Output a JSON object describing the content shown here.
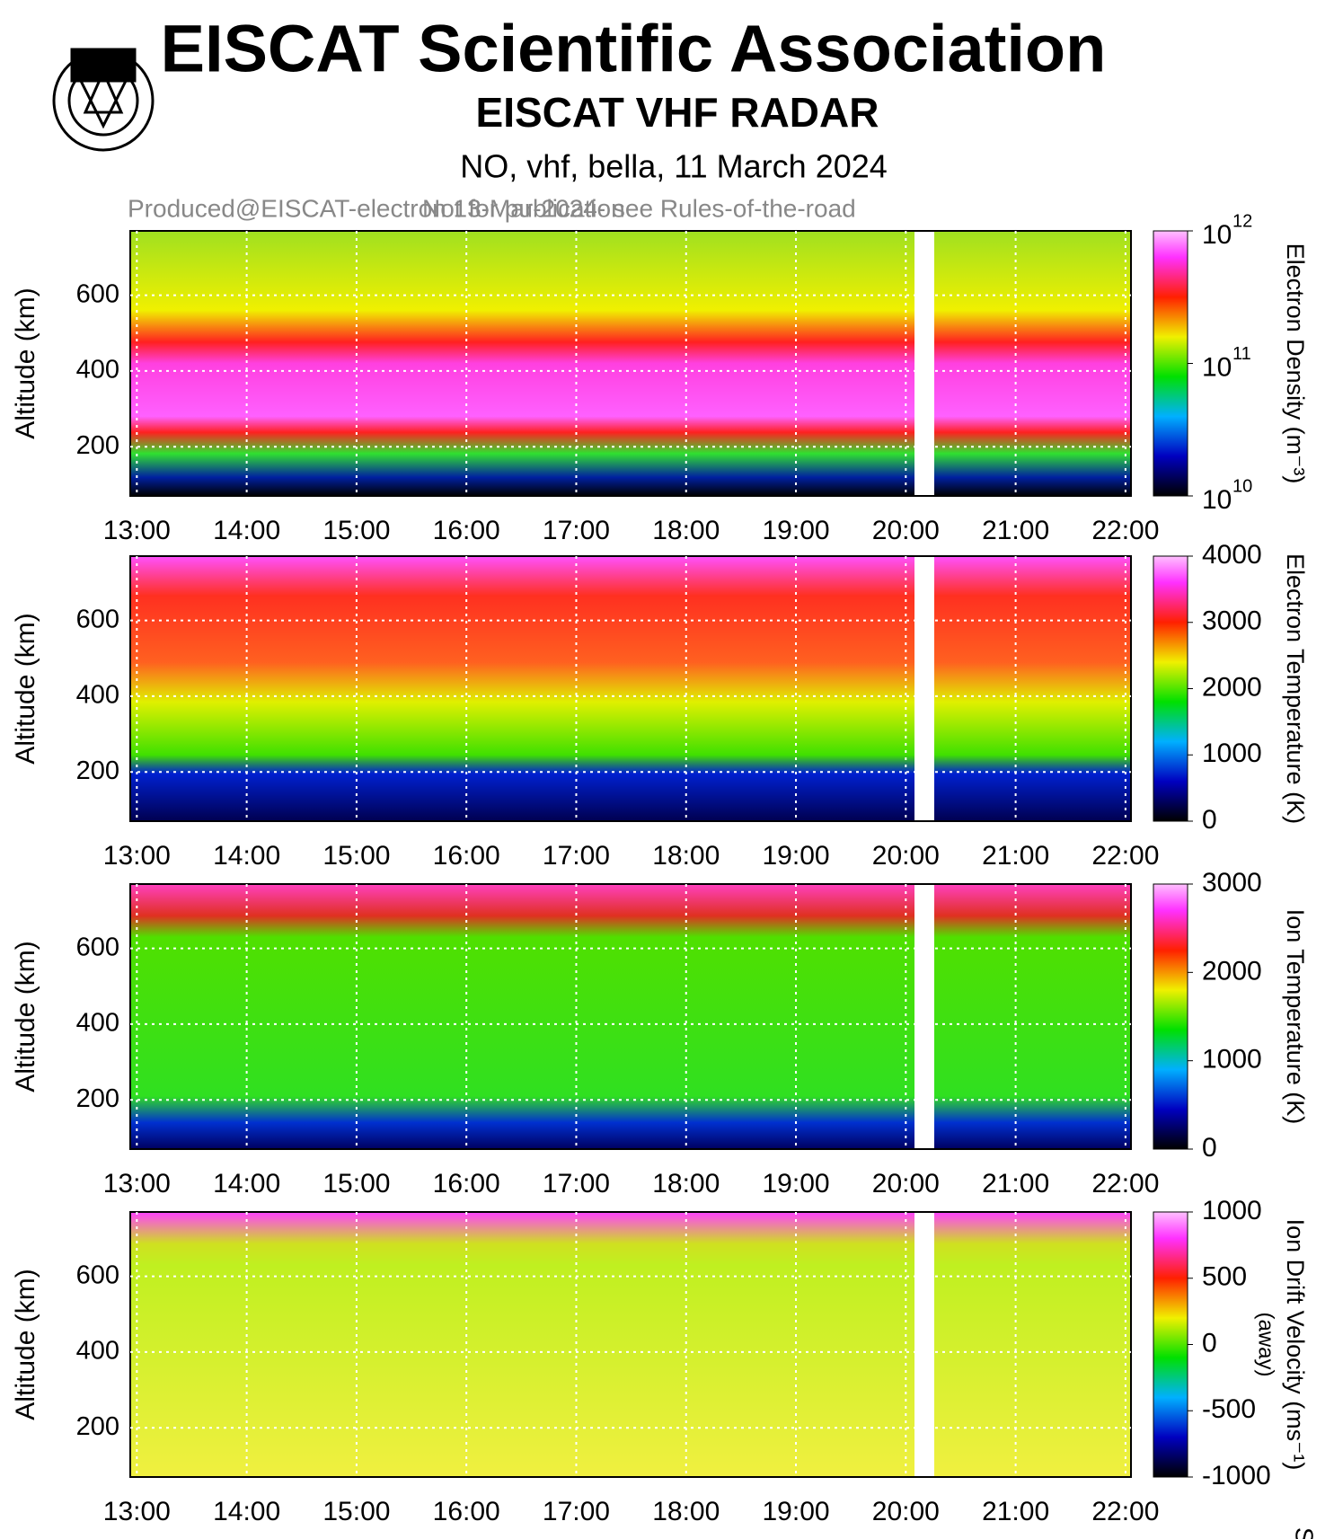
{
  "header": {
    "title": "EISCAT Scientific Association",
    "subtitle": "EISCAT VHF RADAR",
    "run": "NO, vhf, bella, 11 March 2024",
    "note": "Produced@EISCAT-electron 13-Mar-2024- see Rules-of-the-road",
    "overlay": "Not for publication",
    "cut_label": "Syst"
  },
  "chart_data": [
    {
      "type": "heatmap",
      "y_label": "Altitude (km)",
      "ylim": [
        70,
        770
      ],
      "yticks": [
        200,
        400,
        600
      ],
      "xlim": [
        12.94,
        22.05
      ],
      "xticks": [
        {
          "value": 13,
          "label": "13:00"
        },
        {
          "value": 14,
          "label": "14:00"
        },
        {
          "value": 15,
          "label": "15:00"
        },
        {
          "value": 16,
          "label": "16:00"
        },
        {
          "value": 17,
          "label": "17:00"
        },
        {
          "value": 18,
          "label": "18:00"
        },
        {
          "value": 19,
          "label": "19:00"
        },
        {
          "value": 20,
          "label": "20:00"
        },
        {
          "value": 21,
          "label": "21:00"
        },
        {
          "value": 22,
          "label": "22:00"
        }
      ],
      "colorbar": {
        "label": "Electron Density (m⁻³)",
        "log": true,
        "clim": [
          10000000000,
          1000000000000
        ],
        "ticks": [
          {
            "value": 10000000000,
            "label": "10",
            "exponent": "10"
          },
          {
            "value": 100000000000,
            "label": "10",
            "exponent": "11"
          },
          {
            "value": 1000000000000,
            "label": "10",
            "exponent": "12"
          }
        ]
      }
    },
    {
      "type": "heatmap",
      "y_label": "Altitude (km)",
      "ylim": [
        70,
        770
      ],
      "yticks": [
        200,
        400,
        600
      ],
      "xlim": [
        12.94,
        22.05
      ],
      "xticks": [
        {
          "value": 13,
          "label": "13:00"
        },
        {
          "value": 14,
          "label": "14:00"
        },
        {
          "value": 15,
          "label": "15:00"
        },
        {
          "value": 16,
          "label": "16:00"
        },
        {
          "value": 17,
          "label": "17:00"
        },
        {
          "value": 18,
          "label": "18:00"
        },
        {
          "value": 19,
          "label": "19:00"
        },
        {
          "value": 20,
          "label": "20:00"
        },
        {
          "value": 21,
          "label": "21:00"
        },
        {
          "value": 22,
          "label": "22:00"
        }
      ],
      "colorbar": {
        "label": "Electron Temperature (K)",
        "log": false,
        "clim": [
          0,
          4000
        ],
        "ticks": [
          0,
          1000,
          2000,
          3000,
          4000
        ]
      }
    },
    {
      "type": "heatmap",
      "y_label": "Altitude (km)",
      "ylim": [
        70,
        770
      ],
      "yticks": [
        200,
        400,
        600
      ],
      "xlim": [
        12.94,
        22.05
      ],
      "xticks": [
        {
          "value": 13,
          "label": "13:00"
        },
        {
          "value": 14,
          "label": "14:00"
        },
        {
          "value": 15,
          "label": "15:00"
        },
        {
          "value": 16,
          "label": "16:00"
        },
        {
          "value": 17,
          "label": "17:00"
        },
        {
          "value": 18,
          "label": "18:00"
        },
        {
          "value": 19,
          "label": "19:00"
        },
        {
          "value": 20,
          "label": "20:00"
        },
        {
          "value": 21,
          "label": "21:00"
        },
        {
          "value": 22,
          "label": "22:00"
        }
      ],
      "colorbar": {
        "label": "Ion Temperature (K)",
        "log": false,
        "clim": [
          0,
          3000
        ],
        "ticks": [
          0,
          1000,
          2000,
          3000
        ]
      }
    },
    {
      "type": "heatmap",
      "y_label": "Altitude (km)",
      "ylim": [
        70,
        770
      ],
      "yticks": [
        200,
        400,
        600
      ],
      "xlim": [
        12.94,
        22.05
      ],
      "xticks": [
        {
          "value": 13,
          "label": "13:00"
        },
        {
          "value": 14,
          "label": "14:00"
        },
        {
          "value": 15,
          "label": "15:00"
        },
        {
          "value": 16,
          "label": "16:00"
        },
        {
          "value": 17,
          "label": "17:00"
        },
        {
          "value": 18,
          "label": "18:00"
        },
        {
          "value": 19,
          "label": "19:00"
        },
        {
          "value": 20,
          "label": "20:00"
        },
        {
          "value": 21,
          "label": "21:00"
        },
        {
          "value": 22,
          "label": "22:00"
        }
      ],
      "colorbar": {
        "label": "Ion Drift Velocity (ms⁻¹)",
        "sublabel": "(away)",
        "log": false,
        "clim": [
          -1000,
          1000
        ],
        "ticks": [
          -1000,
          -500,
          0,
          500,
          1000
        ]
      }
    }
  ]
}
